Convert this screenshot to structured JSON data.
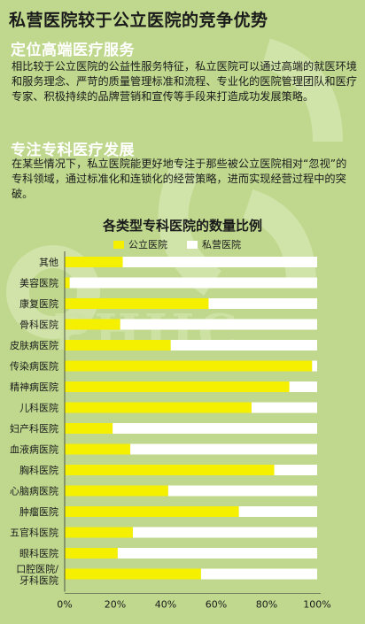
{
  "title": "私营医院较于公立医院的竞争优势",
  "section1": {
    "heading": "定位高端医疗服务",
    "text": "相比较于公立医院的公益性服务特征，私立医院可以通过高端的就医环境和服务理念、严苛的质量管理标准和流程、专业化的医院管理团队和医疗专家、积极持续的品牌营销和宣传等手段来打造成功发展策略。"
  },
  "section2": {
    "heading": "专注专科医疗发展",
    "text": "在某些情况下，私立医院能更好地专注于那些被公立医院相对“忽视”的专科领域，通过标准化和连锁化的经营策略，进而实现经营过程中的突破。"
  },
  "watermark": "PHIIC",
  "colors": {
    "public": "#f5ef00",
    "private": "#ffffff",
    "background": "#bfd88e",
    "heading": "#ffffff"
  },
  "chart_data": {
    "type": "bar",
    "orientation": "horizontal",
    "stacked": "percent",
    "title": "各类型专科医院的数量比例",
    "categories": [
      "其他",
      "美容医院",
      "康复医院",
      "骨科医院",
      "皮肤病医院",
      "传染病医院",
      "精神病医院",
      "儿科医院",
      "妇产科医院",
      "血液病医院",
      "胸科医院",
      "心脑病医院",
      "肿瘤医院",
      "五官科医院",
      "眼科医院",
      "口腔医院/牙科医院"
    ],
    "series": [
      {
        "name": "公立医院",
        "values": [
          23,
          2,
          57,
          22,
          42,
          98,
          89,
          74,
          19,
          26,
          83,
          41,
          69,
          27,
          21,
          54
        ]
      },
      {
        "name": "私营医院",
        "values": [
          77,
          98,
          43,
          78,
          58,
          2,
          11,
          26,
          81,
          74,
          17,
          59,
          31,
          73,
          79,
          46
        ]
      }
    ],
    "xlim": [
      0,
      100
    ],
    "xticks": [
      "0%",
      "20%",
      "40%",
      "60%",
      "80%",
      "100%"
    ],
    "legend_position": "top",
    "grid": false
  }
}
